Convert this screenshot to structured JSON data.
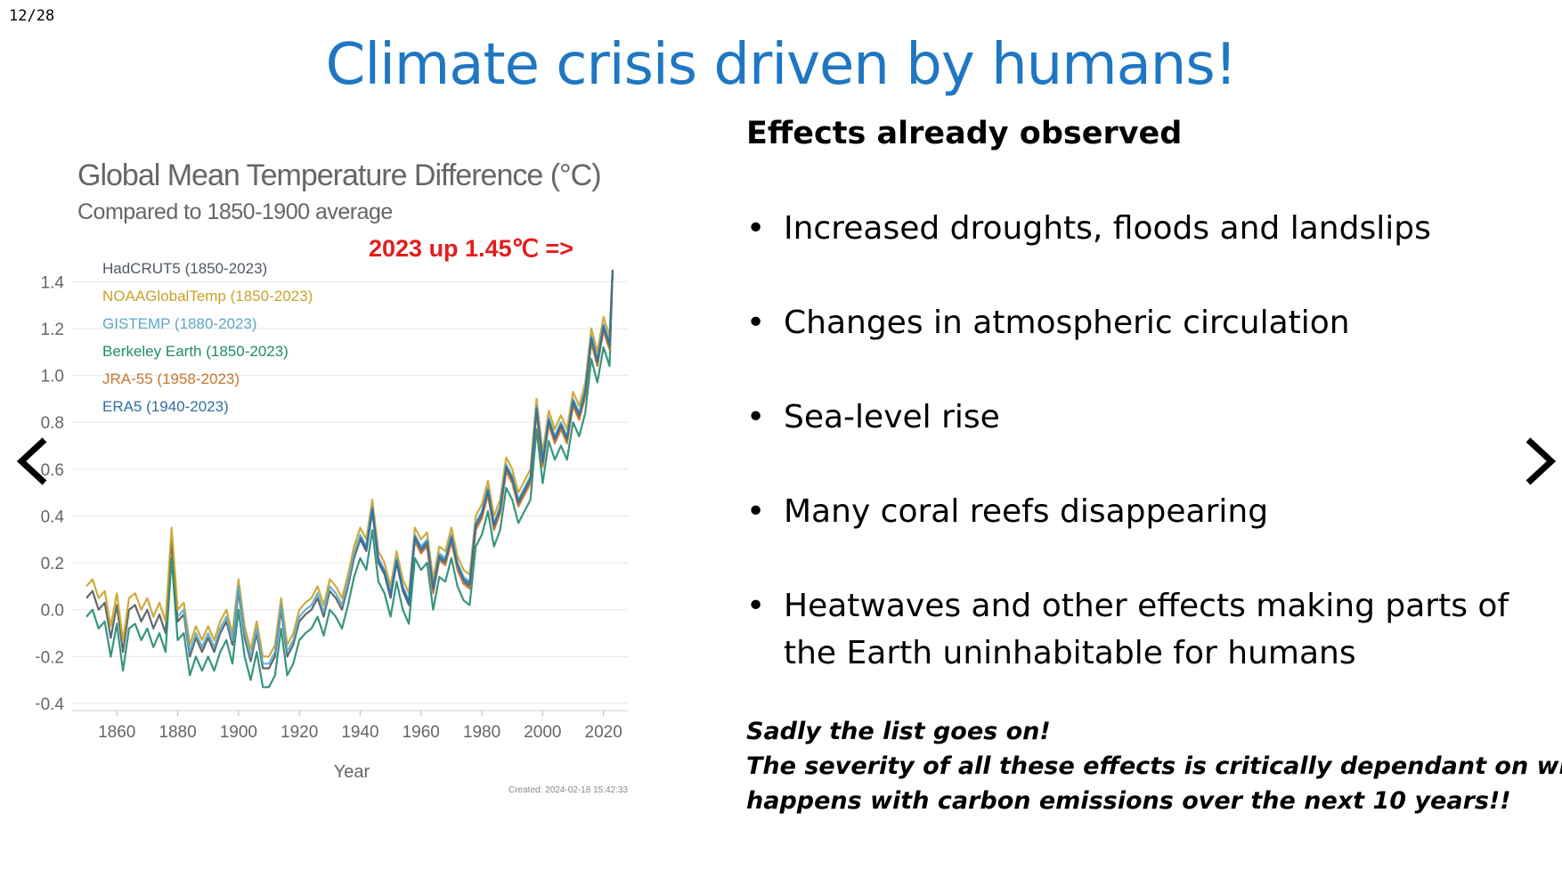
{
  "slide": {
    "counter": "12/28",
    "title": "Climate crisis driven by humans!"
  },
  "nav": {
    "prev_icon": "chevron-left-icon",
    "next_icon": "chevron-right-icon"
  },
  "effects": {
    "heading": "Effects already observed",
    "items": [
      "Increased droughts, floods and landslips",
      "Changes in atmospheric circulation",
      "Sea-level rise",
      "Many coral reefs disappearing",
      "Heatwaves and other effects making parts of the Earth uninhabitable for humans"
    ],
    "footnote_lines": [
      "Sadly the list goes on!",
      "The severity of all these effects is critically dependant on what",
      "happens with carbon emissions over the next 10 years!!"
    ]
  },
  "chart_data": {
    "type": "line",
    "title": "Global Mean Temperature Difference (°C)",
    "subtitle": "Compared to 1850-1900 average",
    "xlabel": "Year",
    "ylabel": "",
    "xlim": [
      1845,
      2028
    ],
    "ylim": [
      -0.4,
      1.5
    ],
    "x_ticks": [
      1860,
      1880,
      1900,
      1920,
      1940,
      1960,
      1980,
      2000,
      2020
    ],
    "y_ticks": [
      -0.4,
      -0.2,
      0.0,
      0.2,
      0.4,
      0.6,
      0.8,
      1.0,
      1.2,
      1.4
    ],
    "grid": "horizontal",
    "legend_position": "top-left",
    "annotation": "2023 up 1.45℃ =>",
    "created": "Created: 2024-02-18 15:42:33",
    "base_x": [
      1850,
      1852,
      1854,
      1856,
      1858,
      1860,
      1862,
      1864,
      1866,
      1868,
      1870,
      1872,
      1874,
      1876,
      1878,
      1880,
      1882,
      1884,
      1886,
      1888,
      1890,
      1892,
      1894,
      1896,
      1898,
      1900,
      1902,
      1904,
      1906,
      1908,
      1910,
      1912,
      1914,
      1916,
      1918,
      1920,
      1922,
      1924,
      1926,
      1928,
      1930,
      1932,
      1934,
      1936,
      1938,
      1940,
      1942,
      1944,
      1946,
      1948,
      1950,
      1952,
      1954,
      1956,
      1958,
      1960,
      1962,
      1964,
      1966,
      1968,
      1970,
      1972,
      1974,
      1976,
      1978,
      1980,
      1982,
      1984,
      1986,
      1988,
      1990,
      1992,
      1994,
      1996,
      1998,
      2000,
      2002,
      2004,
      2006,
      2008,
      2010,
      2012,
      2014,
      2016,
      2018,
      2020,
      2022,
      2023
    ],
    "base_y": [
      0.05,
      0.08,
      0.0,
      0.03,
      -0.12,
      0.02,
      -0.18,
      0.0,
      0.02,
      -0.05,
      0.0,
      -0.08,
      -0.02,
      -0.1,
      0.3,
      -0.05,
      -0.02,
      -0.2,
      -0.12,
      -0.18,
      -0.12,
      -0.18,
      -0.1,
      -0.05,
      -0.15,
      0.08,
      -0.12,
      -0.22,
      -0.1,
      -0.25,
      -0.25,
      -0.2,
      0.0,
      -0.2,
      -0.15,
      -0.05,
      -0.02,
      0.0,
      0.05,
      -0.03,
      0.08,
      0.05,
      0.0,
      0.1,
      0.22,
      0.3,
      0.25,
      0.42,
      0.2,
      0.15,
      0.05,
      0.2,
      0.08,
      0.02,
      0.3,
      0.25,
      0.28,
      0.08,
      0.22,
      0.2,
      0.3,
      0.18,
      0.12,
      0.1,
      0.35,
      0.4,
      0.5,
      0.35,
      0.42,
      0.6,
      0.55,
      0.45,
      0.5,
      0.55,
      0.85,
      0.62,
      0.8,
      0.72,
      0.78,
      0.72,
      0.88,
      0.82,
      0.92,
      1.15,
      1.05,
      1.2,
      1.12,
      1.45
    ],
    "series": [
      {
        "name": "HadCRUT5 (1850-2023)",
        "start": 1850,
        "offset": 0.0,
        "color": "#505862"
      },
      {
        "name": "NOAAGlobalTemp (1850-2023)",
        "start": 1850,
        "offset": 0.05,
        "color": "#c9a227"
      },
      {
        "name": "GISTEMP (1880-2023)",
        "start": 1880,
        "offset": 0.02,
        "color": "#5aa8c4"
      },
      {
        "name": "Berkeley Earth (1850-2023)",
        "start": 1850,
        "offset": -0.08,
        "color": "#1f8a70"
      },
      {
        "name": "JRA-55 (1958-2023)",
        "start": 1958,
        "offset": -0.01,
        "color": "#c7752e"
      },
      {
        "name": "ERA5 (1940-2023)",
        "start": 1940,
        "offset": 0.01,
        "color": "#2f6fa3"
      }
    ]
  }
}
